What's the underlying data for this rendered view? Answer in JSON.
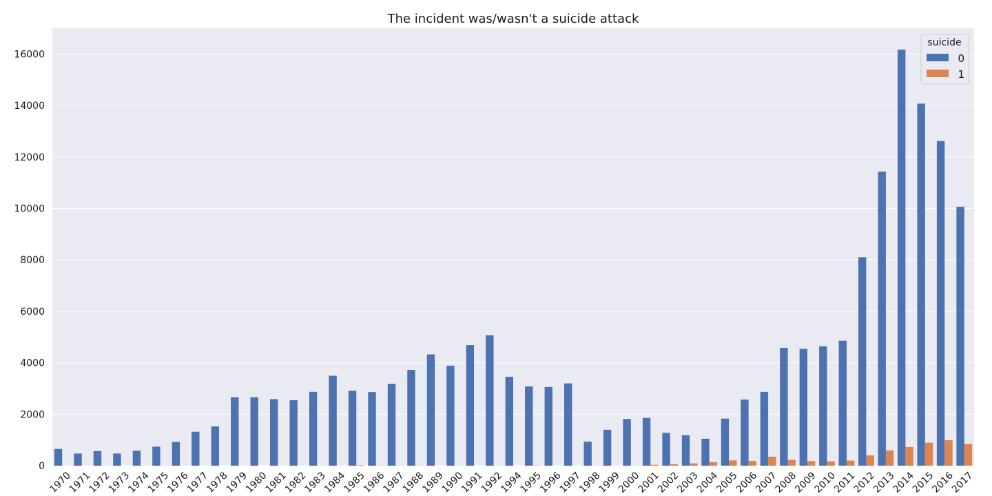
{
  "chart_data": {
    "type": "bar",
    "title": "The incident was/wasn't a suicide attack",
    "xlabel": "",
    "ylabel": "",
    "ylim": [
      0,
      17000
    ],
    "yticks": [
      0,
      2000,
      4000,
      6000,
      8000,
      10000,
      12000,
      14000,
      16000
    ],
    "grid": true,
    "legend": {
      "title": "suicide",
      "placement": "top-right"
    },
    "categories": [
      "1970",
      "1971",
      "1972",
      "1973",
      "1974",
      "1975",
      "1976",
      "1977",
      "1978",
      "1979",
      "1980",
      "1981",
      "1982",
      "1983",
      "1984",
      "1985",
      "1986",
      "1987",
      "1988",
      "1989",
      "1990",
      "1991",
      "1992",
      "1994",
      "1995",
      "1996",
      "1997",
      "1998",
      "1999",
      "2000",
      "2001",
      "2002",
      "2003",
      "2004",
      "2005",
      "2006",
      "2007",
      "2008",
      "2009",
      "2010",
      "2011",
      "2012",
      "2013",
      "2014",
      "2015",
      "2016",
      "2017"
    ],
    "series": [
      {
        "name": "0",
        "color": "#4c72b0",
        "values": [
          651,
          471,
          568,
          473,
          581,
          740,
          923,
          1319,
          1526,
          2662,
          2662,
          2586,
          2544,
          2870,
          3495,
          2915,
          2860,
          3183,
          3720,
          4324,
          3887,
          4683,
          5071,
          3456,
          3081,
          3058,
          3197,
          934,
          1395,
          1814,
          1857,
          1278,
          1185,
          1048,
          1829,
          2571,
          2868,
          4580,
          4541,
          4642,
          4855,
          8102,
          11426,
          16170,
          14071,
          12617,
          10064
        ]
      },
      {
        "name": "1",
        "color": "#dd8452",
        "values": [
          0,
          0,
          0,
          0,
          0,
          0,
          0,
          0,
          0,
          0,
          0,
          0,
          0,
          0,
          0,
          16,
          6,
          5,
          6,
          0,
          0,
          0,
          0,
          0,
          9,
          0,
          0,
          0,
          0,
          0,
          36,
          55,
          93,
          138,
          204,
          183,
          350,
          226,
          180,
          166,
          200,
          401,
          596,
          726,
          894,
          990,
          846
        ]
      }
    ]
  }
}
